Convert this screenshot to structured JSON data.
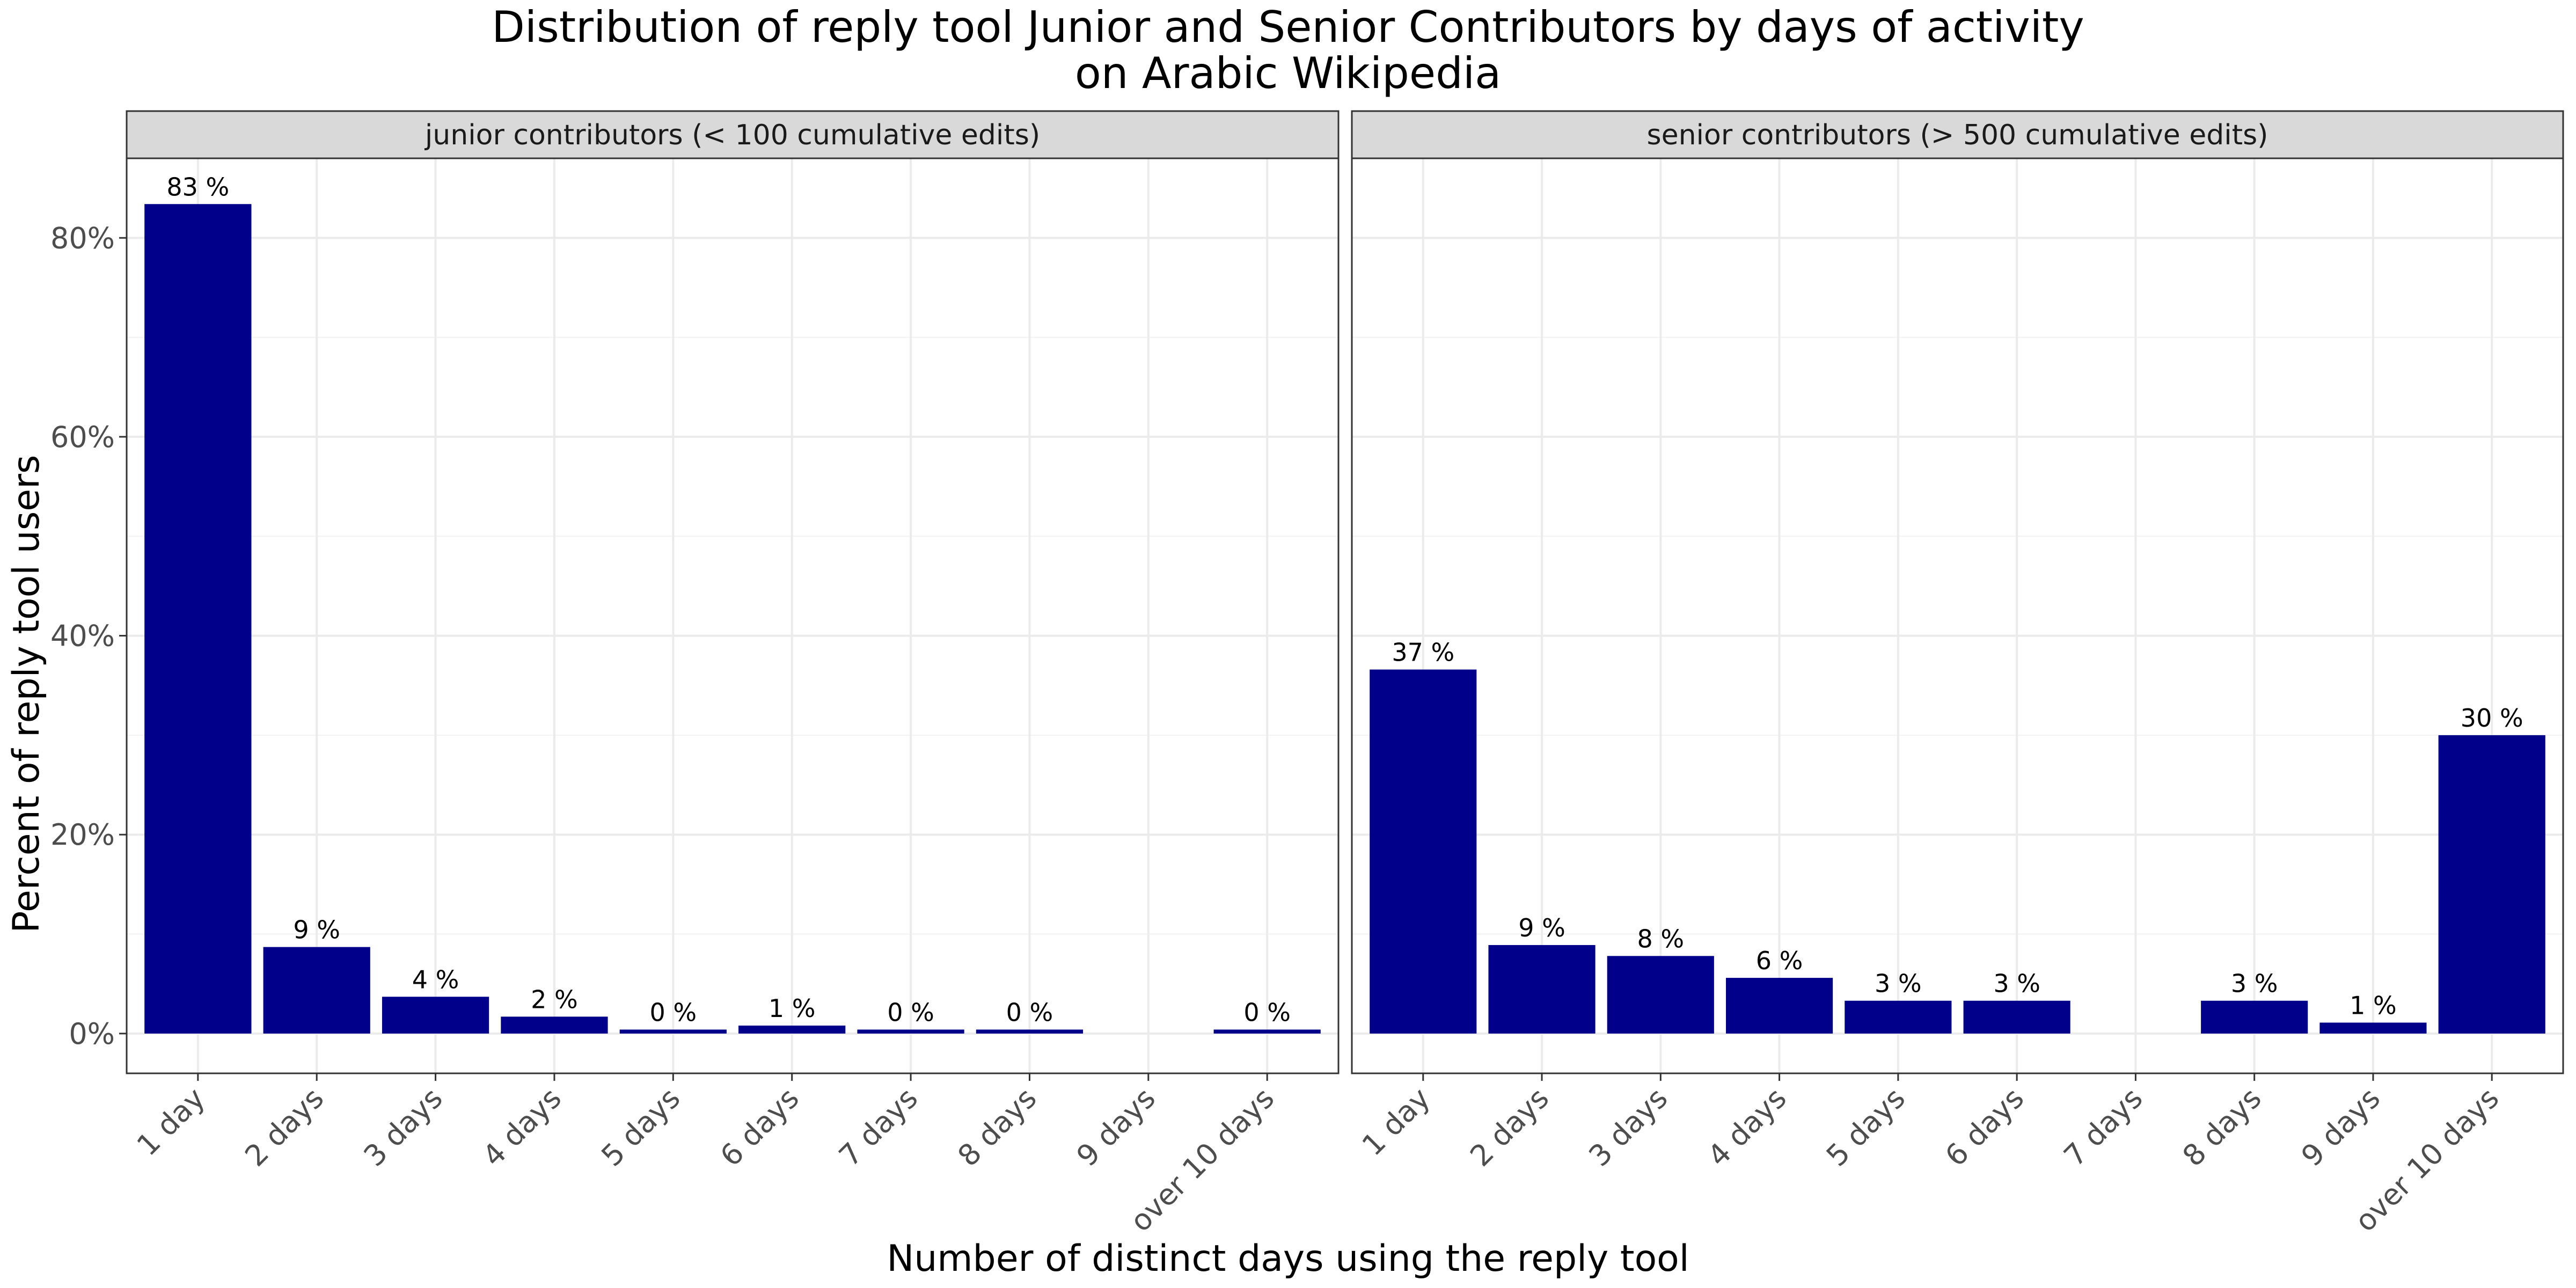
{
  "chart_data": {
    "type": "bar",
    "title": "Distribution of reply tool Junior and Senior Contributors by days of activity",
    "subtitle": "on Arabic Wikipedia",
    "xlabel": "Number of distinct days using the reply tool",
    "ylabel": "Percent of reply tool users",
    "categories": [
      "1 day",
      "2 days",
      "3 days",
      "4 days",
      "5 days",
      "6 days",
      "7 days",
      "8 days",
      "9 days",
      "over 10 days"
    ],
    "ylim": [
      -0.04,
      0.88
    ],
    "yticks": [
      0,
      0.2,
      0.4,
      0.6,
      0.8
    ],
    "ytick_labels": [
      "0%",
      "20%",
      "40%",
      "60%",
      "80%"
    ],
    "grid": true,
    "legend": "none",
    "bar_color": "#00008B",
    "facets": [
      {
        "name": "junior contributors (< 100 cumulative edits)",
        "values": [
          0.834,
          0.087,
          0.037,
          0.017,
          0.004,
          0.008,
          0.004,
          0.004,
          null,
          0.004
        ],
        "labels": [
          "83 %",
          "9 %",
          "4 %",
          "2 %",
          "0 %",
          "1 %",
          "0 %",
          "0 %",
          "",
          "0 %"
        ]
      },
      {
        "name": "senior contributors (> 500 cumulative edits)",
        "values": [
          0.366,
          0.089,
          0.078,
          0.056,
          0.033,
          0.033,
          null,
          0.033,
          0.011,
          0.3
        ],
        "labels": [
          "37 %",
          "9 %",
          "8 %",
          "6 %",
          "3 %",
          "3 %",
          "",
          "3 %",
          "1 %",
          "30 %"
        ]
      }
    ]
  }
}
